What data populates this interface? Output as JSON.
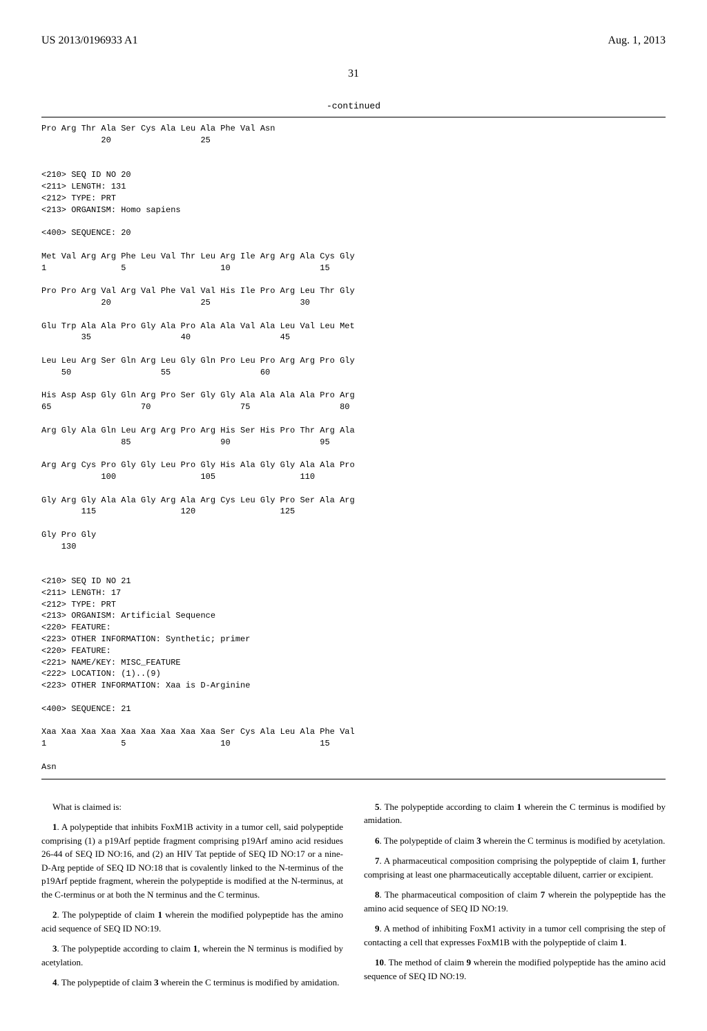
{
  "header": {
    "publication_number": "US 2013/0196933 A1",
    "publication_date": "Aug. 1, 2013",
    "page_number": "31"
  },
  "continued_label": "-continued",
  "sequence_listing": "Pro Arg Thr Ala Ser Cys Ala Leu Ala Phe Val Asn\n            20                  25\n\n\n<210> SEQ ID NO 20\n<211> LENGTH: 131\n<212> TYPE: PRT\n<213> ORGANISM: Homo sapiens\n\n<400> SEQUENCE: 20\n\nMet Val Arg Arg Phe Leu Val Thr Leu Arg Ile Arg Arg Ala Cys Gly\n1               5                   10                  15\n\nPro Pro Arg Val Arg Val Phe Val Val His Ile Pro Arg Leu Thr Gly\n            20                  25                  30\n\nGlu Trp Ala Ala Pro Gly Ala Pro Ala Ala Val Ala Leu Val Leu Met\n        35                  40                  45\n\nLeu Leu Arg Ser Gln Arg Leu Gly Gln Pro Leu Pro Arg Arg Pro Gly\n    50                  55                  60\n\nHis Asp Asp Gly Gln Arg Pro Ser Gly Gly Ala Ala Ala Ala Pro Arg\n65                  70                  75                  80\n\nArg Gly Ala Gln Leu Arg Arg Pro Arg His Ser His Pro Thr Arg Ala\n                85                  90                  95\n\nArg Arg Cys Pro Gly Gly Leu Pro Gly His Ala Gly Gly Ala Ala Pro\n            100                 105                 110\n\nGly Arg Gly Ala Ala Gly Arg Ala Arg Cys Leu Gly Pro Ser Ala Arg\n        115                 120                 125\n\nGly Pro Gly\n    130\n\n\n<210> SEQ ID NO 21\n<211> LENGTH: 17\n<212> TYPE: PRT\n<213> ORGANISM: Artificial Sequence\n<220> FEATURE:\n<223> OTHER INFORMATION: Synthetic; primer\n<220> FEATURE:\n<221> NAME/KEY: MISC_FEATURE\n<222> LOCATION: (1)..(9)\n<223> OTHER INFORMATION: Xaa is D-Arginine\n\n<400> SEQUENCE: 21\n\nXaa Xaa Xaa Xaa Xaa Xaa Xaa Xaa Xaa Ser Cys Ala Leu Ala Phe Val\n1               5                   10                  15\n\nAsn",
  "claims_intro": "What is claimed is:",
  "claims": {
    "c1": {
      "num": "1",
      "text": ". A polypeptide that inhibits FoxM1B activity in a tumor cell, said polypeptide comprising (1) a p19Arf peptide fragment comprising p19Arf amino acid residues 26-44 of SEQ ID NO:16, and (2) an HIV Tat peptide of SEQ ID NO:17 or a nine-D-Arg peptide of SEQ ID NO:18 that is covalently linked to the N-terminus of the p19Arf peptide fragment, wherein the polypeptide is modified at the N-terminus, at the C-terminus or at both the N terminus and the C terminus."
    },
    "c2": {
      "num": "2",
      "text": ". The polypeptide of claim ",
      "ref": "1",
      "rest": " wherein the modified polypeptide has the amino acid sequence of SEQ ID NO:19."
    },
    "c3": {
      "num": "3",
      "text": ". The polypeptide according to claim ",
      "ref": "1",
      "rest": ", wherein the N terminus is modified by acetylation."
    },
    "c4": {
      "num": "4",
      "text": ". The polypeptide of claim ",
      "ref": "3",
      "rest": " wherein the C terminus is modified by amidation."
    },
    "c5": {
      "num": "5",
      "text": ". The polypeptide according to claim ",
      "ref": "1",
      "rest": " wherein the C terminus is modified by amidation."
    },
    "c6": {
      "num": "6",
      "text": ". The polypeptide of claim ",
      "ref": "3",
      "rest": " wherein the C terminus is modified by acetylation."
    },
    "c7": {
      "num": "7",
      "text": ". A pharmaceutical composition comprising the polypeptide of claim ",
      "ref": "1",
      "rest": ", further comprising at least one pharmaceutically acceptable diluent, carrier or excipient."
    },
    "c8": {
      "num": "8",
      "text": ". The pharmaceutical composition of claim ",
      "ref": "7",
      "rest": " wherein the polypeptide has the amino acid sequence of SEQ ID NO:19."
    },
    "c9": {
      "num": "9",
      "text": ". A method of inhibiting FoxM1 activity in a tumor cell comprising the step of contacting a cell that expresses FoxM1B with the polypeptide of claim ",
      "ref": "1",
      "rest": "."
    },
    "c10": {
      "num": "10",
      "text": ". The method of claim ",
      "ref": "9",
      "rest": " wherein the modified polypeptide has the amino acid sequence of SEQ ID NO:19."
    }
  }
}
